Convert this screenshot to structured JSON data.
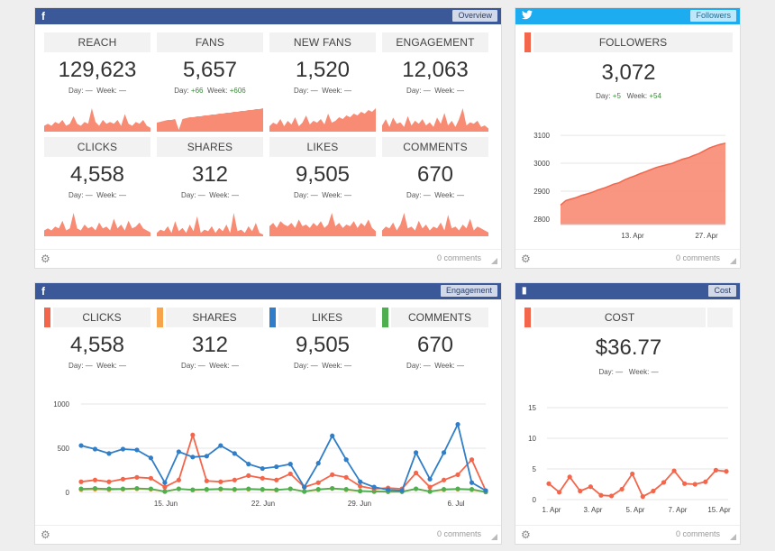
{
  "facebook_overview": {
    "icon": "f",
    "badge": "Overview",
    "tiles": [
      {
        "label": "REACH",
        "value": "129,623",
        "day_label": "Day:",
        "day": "—",
        "week_label": "Week:",
        "week": "—",
        "spark": [
          3,
          4,
          3,
          5,
          4,
          6,
          3,
          4,
          8,
          4,
          3,
          5,
          4,
          12,
          5,
          3,
          6,
          4,
          5,
          4,
          6,
          3,
          9,
          4,
          3,
          5,
          4,
          6,
          3,
          2
        ]
      },
      {
        "label": "FANS",
        "value": "5,657",
        "day_label": "Day:",
        "day": "+66",
        "week_label": "Week:",
        "week": "+606",
        "spark": [
          10,
          11,
          12,
          13,
          13,
          14,
          2,
          14,
          15,
          16,
          16,
          17,
          17,
          18,
          18,
          19,
          19,
          20,
          20,
          21,
          21,
          22,
          22,
          23,
          23,
          24,
          24,
          25,
          25,
          26
        ]
      },
      {
        "label": "NEW FANS",
        "value": "1,520",
        "day_label": "Day:",
        "day": "—",
        "week_label": "Week:",
        "week": "—",
        "spark": [
          3,
          5,
          4,
          7,
          3,
          6,
          4,
          8,
          3,
          5,
          9,
          4,
          6,
          5,
          7,
          4,
          10,
          5,
          6,
          8,
          7,
          9,
          8,
          10,
          9,
          11,
          10,
          12,
          11,
          13
        ]
      },
      {
        "label": "ENGAGEMENT",
        "value": "12,063",
        "day_label": "Day:",
        "day": "—",
        "week_label": "Week:",
        "week": "—",
        "spark": [
          4,
          8,
          3,
          9,
          5,
          6,
          3,
          10,
          4,
          7,
          5,
          8,
          4,
          6,
          3,
          9,
          5,
          12,
          4,
          7,
          3,
          8,
          15,
          4,
          6,
          5,
          7,
          3,
          4,
          2
        ]
      },
      {
        "label": "CLICKS",
        "value": "4,558",
        "day_label": "Day:",
        "day": "—",
        "week_label": "Week:",
        "week": "—",
        "spark": [
          3,
          4,
          3,
          5,
          4,
          8,
          3,
          4,
          12,
          4,
          3,
          6,
          4,
          5,
          3,
          7,
          4,
          5,
          3,
          9,
          4,
          6,
          3,
          8,
          4,
          5,
          7,
          4,
          3,
          2
        ]
      },
      {
        "label": "SHARES",
        "value": "312",
        "day_label": "Day:",
        "day": "—",
        "week_label": "Week:",
        "week": "—",
        "spark": [
          2,
          4,
          3,
          6,
          2,
          9,
          3,
          5,
          2,
          7,
          3,
          12,
          2,
          4,
          3,
          6,
          2,
          5,
          3,
          7,
          2,
          14,
          3,
          4,
          2,
          6,
          3,
          8,
          2,
          1
        ]
      },
      {
        "label": "LIKES",
        "value": "9,505",
        "day_label": "Day:",
        "day": "—",
        "week_label": "Week:",
        "week": "—",
        "spark": [
          6,
          8,
          5,
          9,
          7,
          6,
          8,
          5,
          10,
          6,
          7,
          5,
          8,
          6,
          9,
          5,
          7,
          14,
          6,
          8,
          5,
          7,
          6,
          9,
          5,
          8,
          6,
          10,
          5,
          3
        ]
      },
      {
        "label": "COMMENTS",
        "value": "670",
        "day_label": "Day:",
        "day": "—",
        "week_label": "Week:",
        "week": "—",
        "spark": [
          3,
          5,
          4,
          7,
          3,
          6,
          12,
          4,
          5,
          3,
          8,
          4,
          6,
          3,
          5,
          4,
          7,
          3,
          11,
          4,
          5,
          3,
          6,
          4,
          9,
          3,
          5,
          4,
          3,
          2
        ]
      }
    ],
    "comments": "0 comments"
  },
  "twitter_followers": {
    "icon": "t",
    "badge": "Followers",
    "label": "FOLLOWERS",
    "value": "3,072",
    "day_label": "Day:",
    "day": "+5",
    "week_label": "Week:",
    "week": "+54",
    "comments": "0 comments",
    "colors": {
      "stripe": "#f4664b",
      "area": "#f88b74",
      "line": "#f0674c"
    },
    "chart_data": {
      "type": "area",
      "y_ticks": [
        "3100",
        "3000",
        "2900",
        "2800"
      ],
      "y_range": [
        2780,
        3120
      ],
      "x_ticks": [
        "13. Apr",
        "27. Apr"
      ],
      "values": [
        2850,
        2866,
        2872,
        2877,
        2885,
        2890,
        2896,
        2904,
        2910,
        2917,
        2925,
        2930,
        2940,
        2948,
        2955,
        2963,
        2970,
        2978,
        2985,
        2990,
        2995,
        3000,
        3008,
        3015,
        3020,
        3028,
        3035,
        3045,
        3055,
        3062,
        3068,
        3072
      ]
    }
  },
  "facebook_engagement": {
    "icon": "f",
    "badge": "Engagement",
    "comments": "0 comments",
    "tiles": [
      {
        "label": "CLICKS",
        "value": "4,558",
        "color": "#f4664b",
        "day_label": "Day:",
        "day": "—",
        "week_label": "Week:",
        "week": "—"
      },
      {
        "label": "SHARES",
        "value": "312",
        "color": "#f7a54c",
        "day_label": "Day:",
        "day": "—",
        "week_label": "Week:",
        "week": "—"
      },
      {
        "label": "LIKES",
        "value": "9,505",
        "color": "#2f7ec7",
        "day_label": "Day:",
        "day": "—",
        "week_label": "Week:",
        "week": "—"
      },
      {
        "label": "COMMENTS",
        "value": "670",
        "color": "#4fae4f",
        "day_label": "Day:",
        "day": "—",
        "week_label": "Week:",
        "week": "—"
      }
    ],
    "chart_data": {
      "type": "line",
      "y_ticks": [
        "1000",
        "500",
        "0"
      ],
      "y_range": [
        0,
        1000
      ],
      "x_ticks": [
        "15. Jun",
        "22. Jun",
        "29. Jun",
        "6. Jul"
      ],
      "series": [
        {
          "name": "Likes",
          "color": "#2f7ec7",
          "values": [
            530,
            490,
            440,
            490,
            480,
            390,
            110,
            460,
            400,
            410,
            530,
            440,
            320,
            270,
            290,
            320,
            60,
            330,
            640,
            370,
            120,
            60,
            30,
            20,
            450,
            150,
            450,
            770,
            110,
            20
          ]
        },
        {
          "name": "Clicks",
          "color": "#f4664b",
          "values": [
            120,
            140,
            120,
            150,
            170,
            160,
            60,
            140,
            650,
            130,
            120,
            140,
            190,
            160,
            140,
            210,
            60,
            110,
            200,
            170,
            70,
            40,
            50,
            40,
            220,
            60,
            140,
            200,
            370,
            20
          ]
        },
        {
          "name": "Shares",
          "color": "#f7a54c",
          "values": [
            30,
            35,
            30,
            35,
            40,
            35,
            10,
            40,
            25,
            30,
            35,
            30,
            35,
            30,
            25,
            40,
            10,
            30,
            45,
            30,
            15,
            10,
            8,
            8,
            40,
            10,
            30,
            35,
            30,
            5
          ]
        },
        {
          "name": "Comments",
          "color": "#4fae4f",
          "values": [
            40,
            45,
            40,
            40,
            45,
            40,
            10,
            40,
            30,
            35,
            40,
            35,
            40,
            35,
            30,
            40,
            10,
            35,
            45,
            35,
            15,
            10,
            8,
            8,
            40,
            10,
            35,
            40,
            35,
            5
          ]
        }
      ]
    }
  },
  "cost_widget": {
    "icon": "▮",
    "badge": "Cost",
    "label": "COST",
    "value": "$36.77",
    "day_label": "Day:",
    "day": "—",
    "week_label": "Week:",
    "week": "—",
    "comments": "0 comments",
    "colors": {
      "stripe": "#f4664b",
      "line": "#f4664b"
    },
    "chart_data": {
      "type": "line",
      "y_ticks": [
        "15",
        "10",
        "5",
        "0"
      ],
      "y_range": [
        0,
        15
      ],
      "x_ticks": [
        "1. Apr",
        "3. Apr",
        "5. Apr",
        "7. Apr",
        "15. Apr"
      ],
      "values": [
        2.6,
        1.2,
        3.7,
        1.4,
        2.1,
        0.7,
        0.6,
        1.7,
        4.2,
        0.5,
        1.4,
        2.8,
        4.7,
        2.6,
        2.5,
        2.9,
        4.8,
        4.6
      ]
    }
  }
}
